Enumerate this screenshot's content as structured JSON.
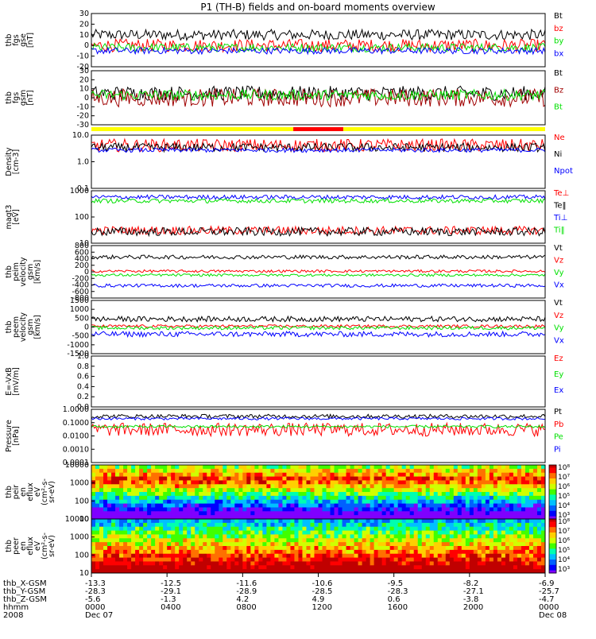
{
  "title": "P1 (TH-B) fields and on-board moments overview",
  "colors": {
    "black": "#000000",
    "red": "#ff0000",
    "green": "#00e000",
    "blue": "#0000ff",
    "darkred": "#a00000",
    "yellow": "#ffff00"
  },
  "chart_data": [
    {
      "type": "line",
      "ylabel": [
        "thb",
        "fgs",
        "gse",
        "[nT]"
      ],
      "yticks": [
        "30",
        "20",
        "10",
        "0",
        "-10",
        "-20"
      ],
      "ylim": [
        -20,
        30
      ],
      "series": [
        {
          "name": "Bt",
          "color": "#000000",
          "mean": 10,
          "noise": 5
        },
        {
          "name": "bz",
          "color": "#ff0000",
          "mean": 0,
          "noise": 6
        },
        {
          "name": "by",
          "color": "#00e000",
          "mean": -2,
          "noise": 4
        },
        {
          "name": "bx",
          "color": "#0000ff",
          "mean": -5,
          "noise": 3
        }
      ]
    },
    {
      "type": "line",
      "ylabel": [
        "thb",
        "fgs",
        "gsm",
        "[nT]"
      ],
      "yticks": [
        "30",
        "20",
        "10",
        "0",
        "-10",
        "-20",
        "-30"
      ],
      "ylim": [
        -30,
        30
      ],
      "series": [
        {
          "name": "Bt",
          "color": "#000000",
          "mean": 5,
          "noise": 8
        },
        {
          "name": "Bz",
          "color": "#a00000",
          "mean": 0,
          "noise": 10
        },
        {
          "name": "Bt",
          "color": "#00e000",
          "mean": 3,
          "noise": 6
        }
      ]
    },
    {
      "type": "line",
      "ylabel": [
        "Density",
        "[cm-3]"
      ],
      "yticks": [
        "10.0",
        "1.0",
        "0.1"
      ],
      "scale": "log",
      "ylim": [
        0.1,
        30
      ],
      "series": [
        {
          "name": "Ne",
          "color": "#ff0000",
          "mean": 10,
          "noise": 0.3
        },
        {
          "name": "Ni",
          "color": "#000000",
          "mean": 8,
          "noise": 0.2
        },
        {
          "name": "Npot",
          "color": "#0000ff",
          "mean": 6,
          "noise": 0.1
        }
      ]
    },
    {
      "type": "line",
      "ylabel": [
        "magt3",
        "[eV]"
      ],
      "yticks": [
        "1000",
        "100",
        "10"
      ],
      "scale": "log",
      "ylim": [
        10,
        3000
      ],
      "series": [
        {
          "name": "Te⊥",
          "color": "#ff0000",
          "mean": 40,
          "noise": 0.2
        },
        {
          "name": "Te‖",
          "color": "#000000",
          "mean": 35,
          "noise": 0.2
        },
        {
          "name": "Ti⊥",
          "color": "#0000ff",
          "mean": 1500,
          "noise": 0.1
        },
        {
          "name": "Ti‖",
          "color": "#00e000",
          "mean": 1000,
          "noise": 0.1
        }
      ]
    },
    {
      "type": "line",
      "ylabel": [
        "thb",
        "peim",
        "velocity",
        "gsm",
        "[km/s]"
      ],
      "yticks": [
        "800",
        "600",
        "400",
        "200",
        "0",
        "-200",
        "-400",
        "-600",
        "-800"
      ],
      "ylim": [
        -800,
        800
      ],
      "series": [
        {
          "name": "Vt",
          "color": "#000000",
          "mean": 450,
          "noise": 60
        },
        {
          "name": "Vz",
          "color": "#ff0000",
          "mean": 20,
          "noise": 40
        },
        {
          "name": "Vy",
          "color": "#00e000",
          "mean": -100,
          "noise": 40
        },
        {
          "name": "Vx",
          "color": "#0000ff",
          "mean": -420,
          "noise": 50
        }
      ]
    },
    {
      "type": "line",
      "ylabel": [
        "thb",
        "peem",
        "velocity",
        "gsm",
        "[km/s]"
      ],
      "yticks": [
        "1500",
        "1000",
        "500",
        "0",
        "-500",
        "-1000",
        "-1500"
      ],
      "ylim": [
        -1500,
        1500
      ],
      "series": [
        {
          "name": "Vt",
          "color": "#000000",
          "mean": 450,
          "noise": 150
        },
        {
          "name": "Vz",
          "color": "#ff0000",
          "mean": 50,
          "noise": 80
        },
        {
          "name": "Vy",
          "color": "#00e000",
          "mean": -50,
          "noise": 100
        },
        {
          "name": "Vx",
          "color": "#0000ff",
          "mean": -400,
          "noise": 150
        }
      ]
    },
    {
      "type": "line",
      "ylabel": [
        "E=-VxB",
        "[mV/m]"
      ],
      "yticks": [
        "1.0",
        "0.8",
        "0.6",
        "0.4",
        "0.2",
        "0.0"
      ],
      "ylim": [
        0,
        1
      ],
      "series": [
        {
          "name": "Ez",
          "color": "#ff0000"
        },
        {
          "name": "Ey",
          "color": "#00e000"
        },
        {
          "name": "Ex",
          "color": "#0000ff"
        }
      ]
    },
    {
      "type": "line",
      "ylabel": [
        "Pressure",
        "[nPa]"
      ],
      "yticks": [
        "1.0000",
        "0.1000",
        "0.0100",
        "0.0010",
        "0.0001"
      ],
      "scale": "log",
      "ylim": [
        0.0001,
        1
      ],
      "series": [
        {
          "name": "Pt",
          "color": "#000000",
          "mean": 0.3,
          "noise": 0.15
        },
        {
          "name": "Pb",
          "color": "#ff0000",
          "mean": 0.03,
          "noise": 0.5
        },
        {
          "name": "Pe",
          "color": "#00e000",
          "mean": 0.05,
          "noise": 0.1
        },
        {
          "name": "Pi",
          "color": "#0000ff",
          "mean": 0.2,
          "noise": 0.1
        }
      ]
    },
    {
      "type": "heatmap",
      "ylabel": [
        "thb",
        "peir",
        "en",
        "eflux",
        "eV",
        "(cm²-s-",
        "sr-eV)"
      ],
      "yticks": [
        "10000",
        "1000",
        "100",
        "10"
      ],
      "scale": "log",
      "ylim": [
        10,
        20000
      ],
      "colorbar": [
        "10⁸",
        "10⁷",
        "10⁶",
        "10⁵",
        "10⁴",
        "10³"
      ]
    },
    {
      "type": "heatmap",
      "ylabel": [
        "thb",
        "peer",
        "en",
        "eflux",
        "eV",
        "(cm²-s-",
        "sr-eV)"
      ],
      "yticks": [
        "10000",
        "1000",
        "100",
        "10"
      ],
      "scale": "log",
      "ylim": [
        10,
        20000
      ],
      "colorbar": [
        "10⁸",
        "10⁷",
        "10⁶",
        "10⁵",
        "10⁴",
        "10³"
      ]
    }
  ],
  "footer": {
    "row_labels": [
      "thb_X-GSM",
      "thb_Y-GSM",
      "thb_Z-GSM",
      "hhmm",
      "2008"
    ],
    "columns": [
      {
        "x": "-13.3",
        "y": "-28.3",
        "z": "-5.6",
        "t": "0000",
        "d": "Dec 07"
      },
      {
        "x": "-12.5",
        "y": "-29.1",
        "z": "-1.3",
        "t": "0400",
        "d": ""
      },
      {
        "x": "-11.6",
        "y": "-28.9",
        "z": "4.2",
        "t": "0800",
        "d": ""
      },
      {
        "x": "-10.6",
        "y": "-28.5",
        "z": "4.9",
        "t": "1200",
        "d": ""
      },
      {
        "x": "-9.5",
        "y": "-28.3",
        "z": "0.6",
        "t": "1600",
        "d": ""
      },
      {
        "x": "-8.2",
        "y": "-27.1",
        "z": "-3.8",
        "t": "2000",
        "d": ""
      },
      {
        "x": "-6.9",
        "y": "-25.7",
        "z": "-4.7",
        "t": "0000",
        "d": "Dec 08"
      }
    ]
  }
}
